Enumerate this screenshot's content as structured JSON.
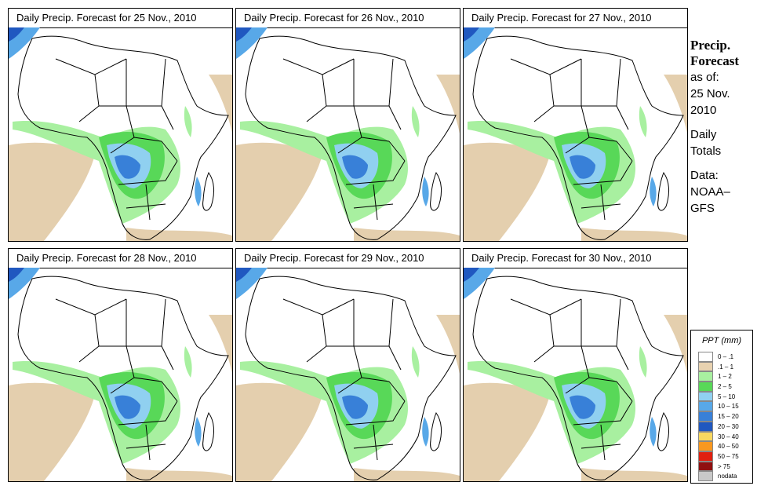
{
  "panels": [
    {
      "title": "Daily Precip. Forecast for  25 Nov., 2010"
    },
    {
      "title": "Daily Precip. Forecast for  26 Nov., 2010"
    },
    {
      "title": "Daily Precip. Forecast for  27 Nov., 2010"
    },
    {
      "title": "Daily Precip. Forecast for  28 Nov., 2010"
    },
    {
      "title": "Daily Precip. Forecast for  29 Nov., 2010"
    },
    {
      "title": "Daily Precip. Forecast for  30 Nov., 2010"
    }
  ],
  "sidebar": {
    "heading1": "Precip.",
    "heading2": "Forecast",
    "asof1": "as of:",
    "asof2": "25 Nov.",
    "asof3": "2010",
    "daily1": "Daily",
    "daily2": "Totals",
    "data1": "Data:",
    "data2": "NOAA–",
    "data3": "GFS"
  },
  "legend": {
    "title": "PPT (mm)",
    "items": [
      {
        "label": "0 – .1",
        "color": "#ffffff"
      },
      {
        "label": ".1 – 1",
        "color": "#e8d2b0"
      },
      {
        "label": "1 – 2",
        "color": "#a8f0a0"
      },
      {
        "label": "2 – 5",
        "color": "#58d858"
      },
      {
        "label": "5 – 10",
        "color": "#90d0f0"
      },
      {
        "label": "10 – 15",
        "color": "#58a8e8"
      },
      {
        "label": "15 – 20",
        "color": "#3880d8"
      },
      {
        "label": "20 – 30",
        "color": "#2058c0"
      },
      {
        "label": "30 – 40",
        "color": "#f8d860"
      },
      {
        "label": "40 – 50",
        "color": "#f89820"
      },
      {
        "label": "50 – 75",
        "color": "#e02010"
      },
      {
        "label": "> 75",
        "color": "#901010"
      },
      {
        "label": "nodata",
        "color": "#c8c8c8"
      }
    ]
  }
}
